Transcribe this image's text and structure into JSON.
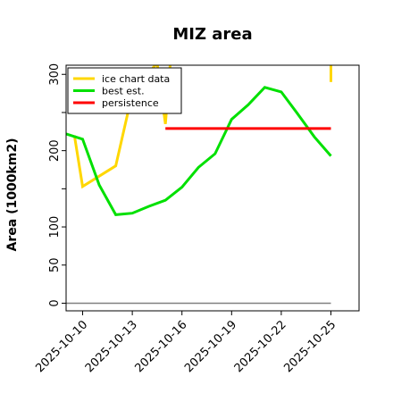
{
  "chart_data": {
    "type": "line",
    "title": "MIZ area",
    "ylabel": "Area (1000km2)",
    "xlabel": "",
    "x_tick_labels": [
      "2025-10-10",
      "2025-10-13",
      "2025-10-16",
      "2025-10-19",
      "2025-10-22",
      "2025-10-25"
    ],
    "x_ticks_day": [
      10,
      13,
      16,
      19,
      22,
      25
    ],
    "xlim": [
      9,
      26.7
    ],
    "y_tick_labels": [
      "0",
      "50",
      "100",
      "200",
      "300"
    ],
    "y_ticks": [
      0,
      50,
      100,
      200,
      300
    ],
    "y_minor_ticks": [
      150,
      250
    ],
    "ylim": [
      -10,
      312
    ],
    "legend": {
      "position": "top-left",
      "entries": [
        "ice chart data",
        "best est.",
        "persistence"
      ]
    },
    "series": [
      {
        "name": "ice chart data",
        "color": "#ffd700",
        "points": [
          [
            9.5,
            220
          ],
          [
            10,
            153
          ],
          [
            12,
            180
          ],
          [
            13,
            275
          ],
          [
            14.5,
            315
          ],
          [
            15,
            235
          ],
          [
            15.3,
            315
          ]
        ],
        "points_right": [
          [
            25,
            315
          ],
          [
            25,
            290
          ]
        ]
      },
      {
        "name": "best est.",
        "color": "#00e000",
        "points": [
          [
            9,
            222
          ],
          [
            10,
            215
          ],
          [
            11,
            155
          ],
          [
            12,
            116
          ],
          [
            13,
            118
          ],
          [
            14,
            127
          ],
          [
            15,
            135
          ],
          [
            16,
            152
          ],
          [
            17,
            178
          ],
          [
            18,
            196
          ],
          [
            19,
            241
          ],
          [
            20,
            260
          ],
          [
            21,
            283
          ],
          [
            22,
            277
          ],
          [
            23,
            248
          ],
          [
            24,
            218
          ],
          [
            25,
            193
          ]
        ]
      },
      {
        "name": "persistence",
        "color": "#ff0000",
        "points": [
          [
            15,
            229
          ],
          [
            25,
            229
          ]
        ]
      },
      {
        "name": "",
        "color": "#808080",
        "points": [
          [
            9,
            0
          ],
          [
            25,
            0
          ]
        ]
      }
    ]
  }
}
